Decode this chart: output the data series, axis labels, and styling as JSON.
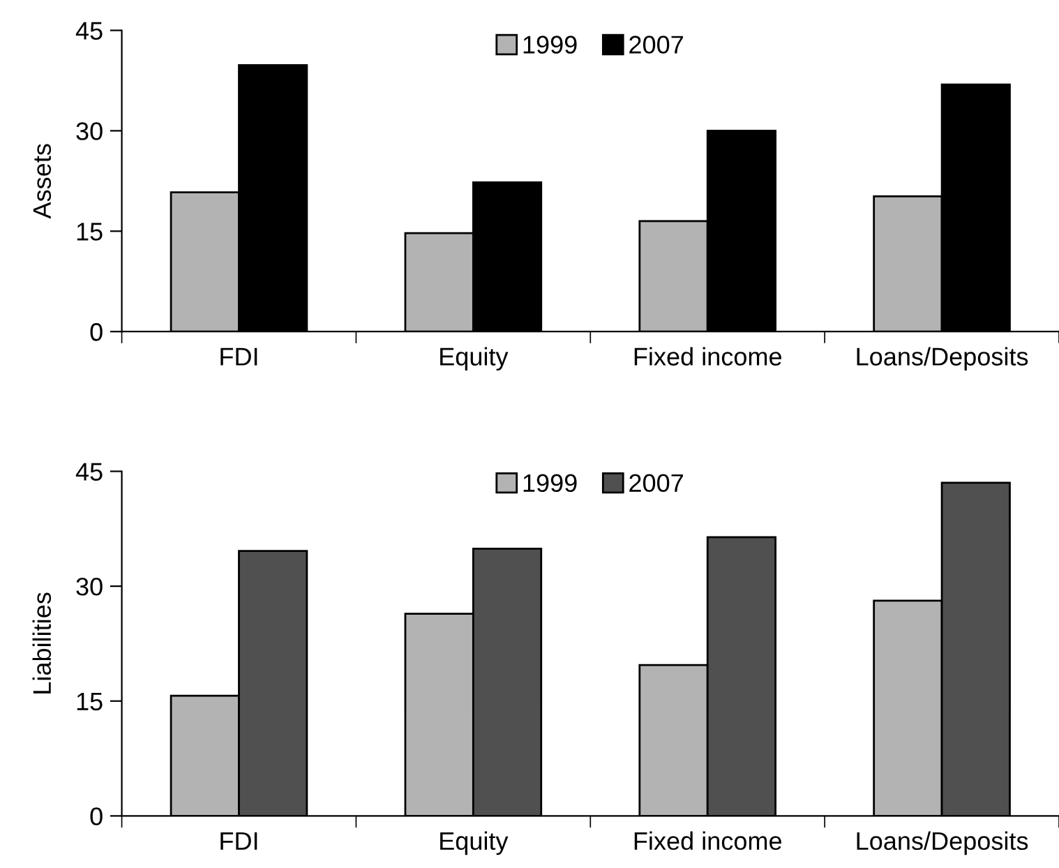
{
  "chart_data": [
    {
      "type": "bar",
      "ylabel": "Assets",
      "categories": [
        "FDI",
        "Equity",
        "Fixed income",
        "Loans/Deposits"
      ],
      "ylim": [
        0,
        45
      ],
      "yticks": [
        0,
        15,
        30,
        45
      ],
      "legend": "top",
      "grid": false,
      "series": [
        {
          "name": "1999",
          "color": "#b3b3b3",
          "values": [
            20.8,
            14.7,
            16.5,
            20.2
          ]
        },
        {
          "name": "2007",
          "color": "#000000",
          "values": [
            39.8,
            22.3,
            30.0,
            36.9
          ]
        }
      ]
    },
    {
      "type": "bar",
      "ylabel": "Liabilities",
      "categories": [
        "FDI",
        "Equity",
        "Fixed income",
        "Loans/Deposits"
      ],
      "ylim": [
        0,
        45
      ],
      "yticks": [
        0,
        15,
        30,
        45
      ],
      "legend": "top",
      "grid": false,
      "series": [
        {
          "name": "1999",
          "color": "#b3b3b3",
          "values": [
            15.7,
            26.4,
            19.7,
            28.1
          ]
        },
        {
          "name": "2007",
          "color": "#505050",
          "values": [
            34.6,
            34.9,
            36.4,
            43.5
          ]
        }
      ]
    }
  ]
}
